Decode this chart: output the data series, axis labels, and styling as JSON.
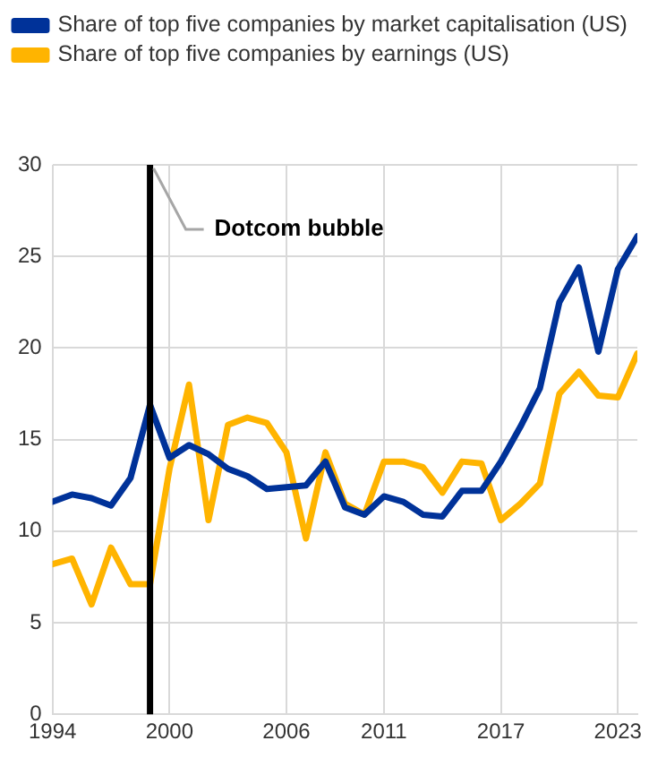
{
  "chart_data": {
    "type": "line",
    "x": [
      1994,
      1995,
      1996,
      1997,
      1998,
      1999,
      2000,
      2001,
      2002,
      2003,
      2004,
      2005,
      2006,
      2007,
      2008,
      2009,
      2010,
      2011,
      2012,
      2013,
      2014,
      2015,
      2016,
      2017,
      2018,
      2019,
      2020,
      2021,
      2022,
      2023,
      2024
    ],
    "series": [
      {
        "name": "Share of top five companies by market capitalisation (US)",
        "color": "#003299",
        "values": [
          11.6,
          12.0,
          11.8,
          11.4,
          12.9,
          16.9,
          14.0,
          14.7,
          14.2,
          13.4,
          13.0,
          12.3,
          12.4,
          12.5,
          13.8,
          11.3,
          10.9,
          11.9,
          11.6,
          10.9,
          10.8,
          12.2,
          12.2,
          13.8,
          15.7,
          17.8,
          22.5,
          24.4,
          19.8,
          24.3,
          26.1
        ]
      },
      {
        "name": "Share of top five companies by earnings (US)",
        "color": "#ffb400",
        "values": [
          8.2,
          8.5,
          6.0,
          9.1,
          7.1,
          7.1,
          13.4,
          18.0,
          10.6,
          15.8,
          16.2,
          15.9,
          14.3,
          9.6,
          14.3,
          11.5,
          10.9,
          13.8,
          13.8,
          13.5,
          12.1,
          13.8,
          13.7,
          10.6,
          11.5,
          12.6,
          17.5,
          18.7,
          17.4,
          17.3,
          19.7
        ]
      }
    ],
    "xlim": [
      1994,
      2024
    ],
    "xticks": [
      1994,
      2000,
      2006,
      2011,
      2017,
      2023
    ],
    "ylim": [
      0,
      30
    ],
    "yticks": [
      0,
      5,
      10,
      15,
      20,
      25,
      30
    ],
    "ref_lines": [
      {
        "axis": "x",
        "value": 1999,
        "label": "Dotcom bubble",
        "color": "#000000"
      }
    ],
    "grid": true,
    "legend": "top left",
    "marker": "none",
    "line_style": "solid"
  }
}
